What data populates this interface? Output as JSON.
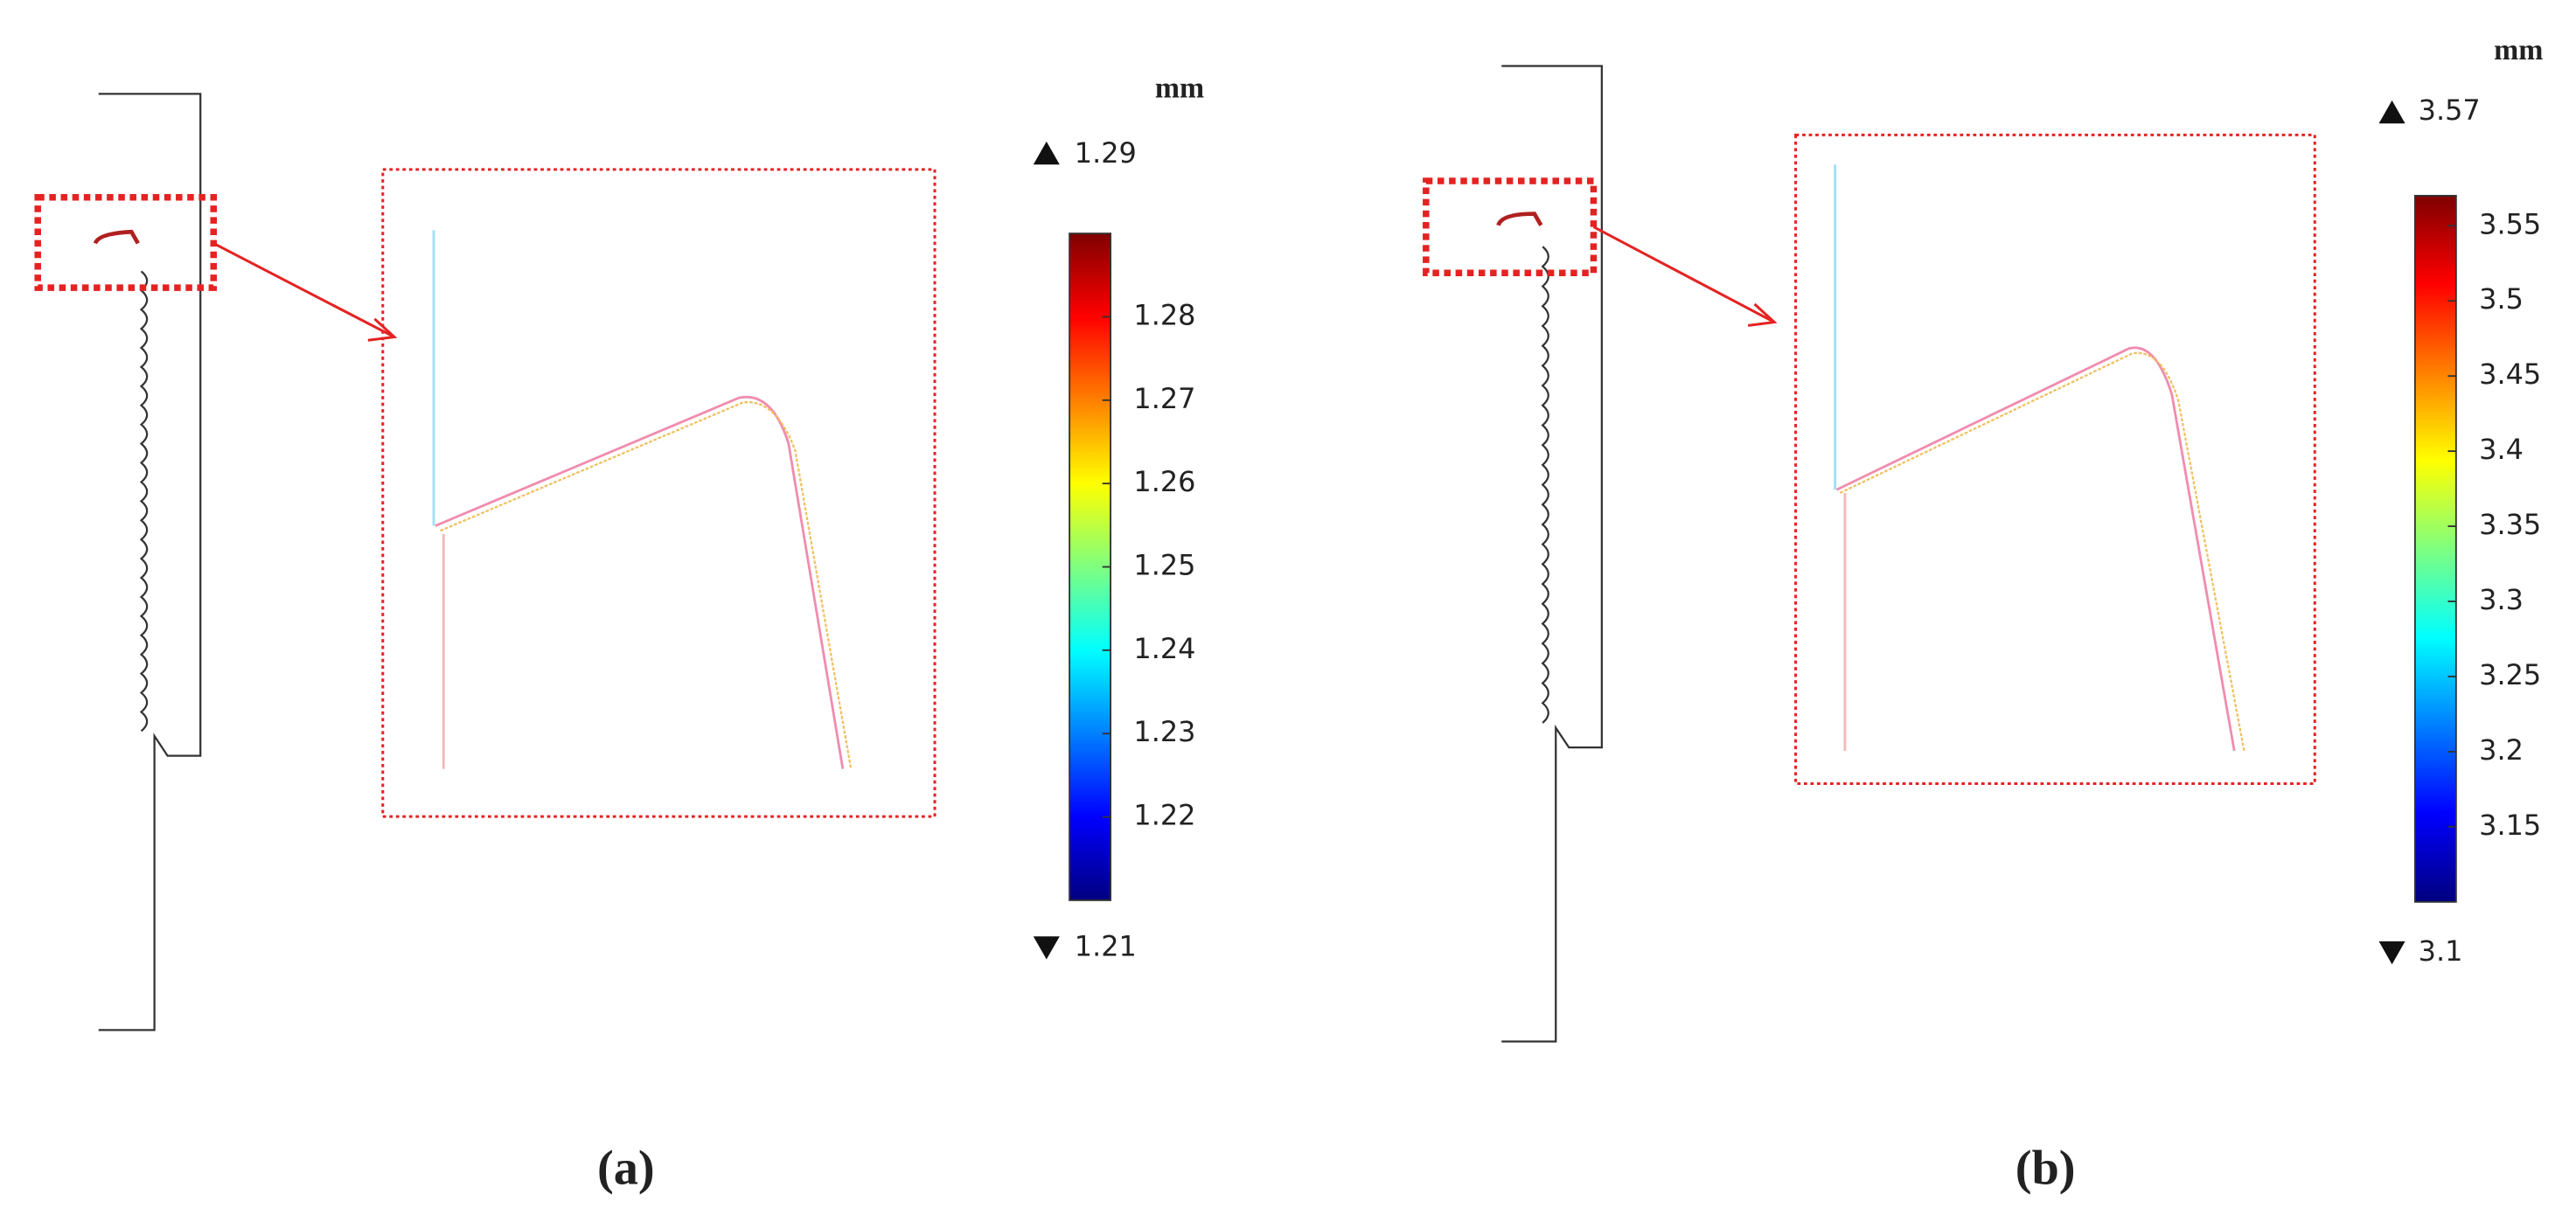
{
  "panels": [
    {
      "label": "(a)",
      "unit": "mm",
      "max": 1.29,
      "min": 1.21,
      "ticks": [
        1.28,
        1.27,
        1.26,
        1.25,
        1.24,
        1.23,
        1.22
      ]
    },
    {
      "label": "(b)",
      "unit": "mm",
      "max": 3.57,
      "min": 3.1,
      "ticks": [
        3.55,
        3.5,
        3.45,
        3.4,
        3.35,
        3.3,
        3.25,
        3.2,
        3.15
      ]
    }
  ]
}
